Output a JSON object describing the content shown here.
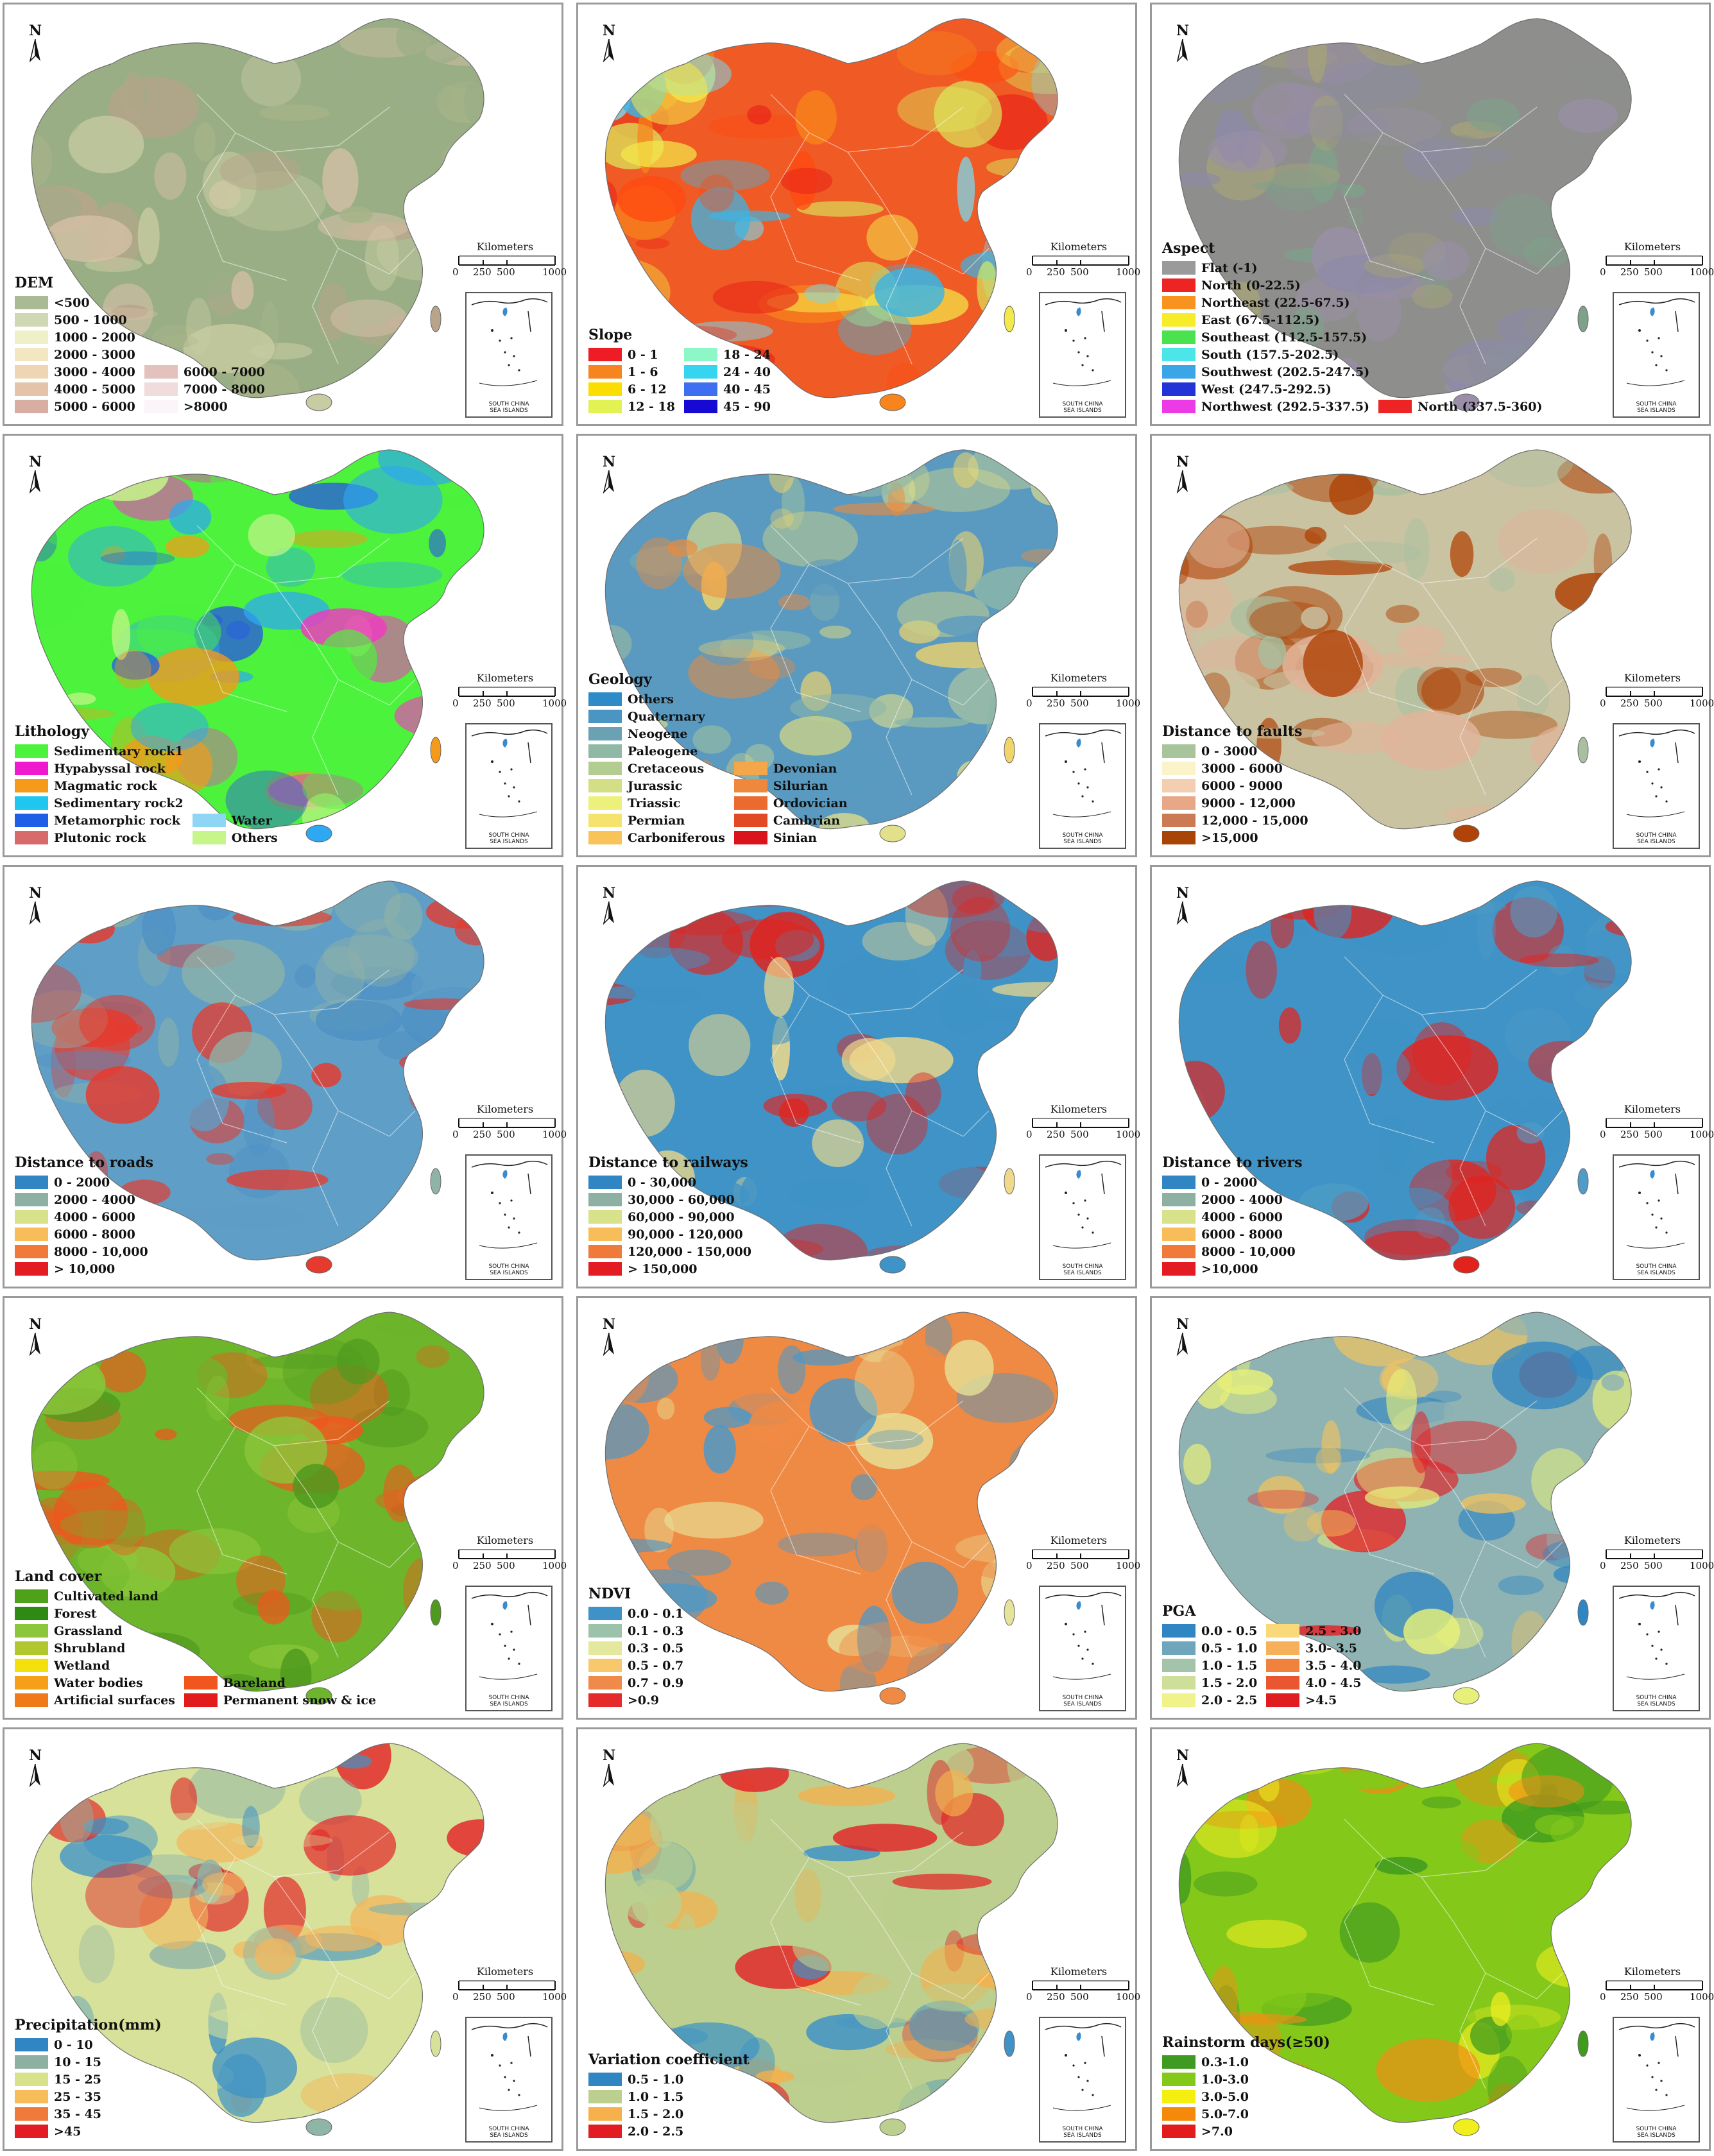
{
  "figure": {
    "north_label": "N",
    "scale": {
      "title": "Kilometers",
      "ticks": [
        "0",
        "250",
        "500",
        "1000"
      ]
    },
    "inset": {
      "line1": "SOUTH CHINA",
      "line2": "SEA ISLANDS"
    },
    "panels": [
      {
        "id": "dem",
        "title": "DEM",
        "base": "#9aae86",
        "palette": [
          "#9aae86",
          "#c8cca2",
          "#b7a48a",
          "#d8c1a8",
          "#a6b388"
        ],
        "legend_cols": [
          [
            {
              "label": "<500",
              "color": "#a8bb95"
            },
            {
              "label": "500 - 1000",
              "color": "#cfd8b4"
            },
            {
              "label": "1000 - 2000",
              "color": "#efefc8"
            },
            {
              "label": "2000 - 3000",
              "color": "#f3e7c1"
            },
            {
              "label": "3000 - 4000",
              "color": "#eed6b4"
            },
            {
              "label": "4000 - 5000",
              "color": "#e4c3a8"
            },
            {
              "label": "5000 - 6000",
              "color": "#d7aea1"
            }
          ],
          [
            {
              "label": "6000 - 7000",
              "color": "#e3c1bd"
            },
            {
              "label": "7000 - 8000",
              "color": "#f1dcdc"
            },
            {
              "label": ">8000",
              "color": "#fbf4f8"
            }
          ]
        ]
      },
      {
        "id": "slope",
        "title": "Slope",
        "base": "#f05a25",
        "palette": [
          "#e92a1a",
          "#f7841c",
          "#f3e94a",
          "#7dd6ea",
          "#3ab5e5",
          "#d8ee5e",
          "#ff4a10"
        ],
        "legend_cols": [
          [
            {
              "label": "0 - 1",
              "color": "#ee1c25"
            },
            {
              "label": "1 - 6",
              "color": "#f7851f"
            },
            {
              "label": "6 - 12",
              "color": "#fcdd00"
            },
            {
              "label": "12 - 18",
              "color": "#e3f253"
            }
          ],
          [
            {
              "label": "18 - 24",
              "color": "#8ef7c7"
            },
            {
              "label": "24 - 40",
              "color": "#35d5f2"
            },
            {
              "label": "40 - 45",
              "color": "#3d6ff0"
            },
            {
              "label": "45 - 90",
              "color": "#1509d3"
            }
          ]
        ]
      },
      {
        "id": "aspect",
        "title": "Aspect",
        "base": "#8e8f8c",
        "palette": [
          "#8e8f8c",
          "#9a8ea8",
          "#7fa08a",
          "#a3a17b",
          "#8c8aa8"
        ],
        "legend_cols": [
          [
            {
              "label": "Flat (-1)",
              "color": "#9a9a9a"
            },
            {
              "label": "North (0-22.5)",
              "color": "#ee2424"
            },
            {
              "label": "Northeast (22.5-67.5)",
              "color": "#f7931e"
            },
            {
              "label": "East (67.5-112.5)",
              "color": "#f6ec2a"
            },
            {
              "label": "Southeast (112.5-157.5)",
              "color": "#4ae24d"
            },
            {
              "label": "South (157.5-202.5)",
              "color": "#4de6e8"
            },
            {
              "label": "Southwest (202.5-247.5)",
              "color": "#3aa6e8"
            },
            {
              "label": "West (247.5-292.5)",
              "color": "#2234d6"
            },
            {
              "label": "Northwest (292.5-337.5)",
              "color": "#ec3ae6"
            }
          ],
          [
            {
              "label": "North (337.5-360)",
              "color": "#ee2424"
            }
          ]
        ]
      },
      {
        "id": "lithology",
        "title": "Lithology",
        "base": "#4cf23c",
        "palette": [
          "#4cf23c",
          "#2ea8f0",
          "#f59a1a",
          "#c6f58a",
          "#2b63d6",
          "#f03cc0"
        ],
        "legend_cols": [
          [
            {
              "label": "Sedimentary rock1",
              "color": "#4cf23c"
            },
            {
              "label": "Hypabyssal rock",
              "color": "#ef1ad0"
            },
            {
              "label": "Magmatic rock",
              "color": "#f59a1a"
            },
            {
              "label": "Sedimentary rock2",
              "color": "#1fc6f0"
            },
            {
              "label": "Metamorphic rock",
              "color": "#1f5fe8"
            },
            {
              "label": "Plutonic rock",
              "color": "#d86a6a"
            }
          ],
          [
            {
              "label": "Water",
              "color": "#8fd6f5"
            },
            {
              "label": "Others",
              "color": "#c6f58a"
            }
          ]
        ]
      },
      {
        "id": "geology",
        "title": "Geology",
        "base": "#5a9ac0",
        "palette": [
          "#5a9ac0",
          "#e2e08a",
          "#f1d46a",
          "#8cb6a8",
          "#ee8a3a",
          "#c8d08a"
        ],
        "legend_cols": [
          [
            {
              "label": "Others",
              "color": "#2f8ac8"
            },
            {
              "label": "Quaternary",
              "color": "#4b95c2"
            },
            {
              "label": "Neogene",
              "color": "#6aa2b4"
            },
            {
              "label": "Paleogene",
              "color": "#8fb9a6"
            },
            {
              "label": "Cretaceous",
              "color": "#b2cc92"
            },
            {
              "label": "Jurassic",
              "color": "#d4de84"
            },
            {
              "label": "Triassic",
              "color": "#eef07c"
            },
            {
              "label": "Permian",
              "color": "#f6e36e"
            },
            {
              "label": "Carboniferous",
              "color": "#f8c45a"
            }
          ],
          [
            {
              "label": "Devonian",
              "color": "#f4a64a"
            },
            {
              "label": "Silurian",
              "color": "#ef883c"
            },
            {
              "label": "Ordovician",
              "color": "#ea6a30"
            },
            {
              "label": "Cambrian",
              "color": "#e24a26"
            },
            {
              "label": "Sinian",
              "color": "#d9141c"
            }
          ]
        ]
      },
      {
        "id": "faults",
        "title": "Distance to faults",
        "base": "#c9c3a2",
        "palette": [
          "#c9c3a2",
          "#b04408",
          "#a8bfa0",
          "#e2b49a",
          "#b04408"
        ],
        "legend_cols": [
          [
            {
              "label": "0 - 3000",
              "color": "#a7c49a"
            },
            {
              "label": "3000 - 6000",
              "color": "#fbf3c9"
            },
            {
              "label": "6000 - 9000",
              "color": "#f4ceb0"
            },
            {
              "label": "9000 - 12,000",
              "color": "#e8a888"
            },
            {
              "label": "12,000 - 15,000",
              "color": "#cc7a54"
            },
            {
              "label": ">15,000",
              "color": "#a84406"
            }
          ]
        ]
      },
      {
        "id": "roads",
        "title": "Distance to roads",
        "base": "#5f9ec6",
        "palette": [
          "#5f9ec6",
          "#e63a2e",
          "#8fb3a8",
          "#4d90c4",
          "#e63a2e"
        ],
        "legend_cols": [
          [
            {
              "label": "0 - 2000",
              "color": "#2f86c2"
            },
            {
              "label": "2000 - 4000",
              "color": "#8db0a2"
            },
            {
              "label": "4000 - 6000",
              "color": "#d8e28a"
            },
            {
              "label": "6000 - 8000",
              "color": "#f6bd5a"
            },
            {
              "label": "8000 - 10,000",
              "color": "#ef7a3a"
            },
            {
              "label": "> 10,000",
              "color": "#e21c22"
            }
          ]
        ]
      },
      {
        "id": "railways",
        "title": "Distance to railways",
        "base": "#3f93c6",
        "palette": [
          "#e2231d",
          "#3f93c6",
          "#f0d98a",
          "#e2231d",
          "#3f93c6"
        ],
        "legend_cols": [
          [
            {
              "label": "0 - 30,000",
              "color": "#2f86c2"
            },
            {
              "label": "30,000 - 60,000",
              "color": "#8db0a2"
            },
            {
              "label": "60,000 - 90,000",
              "color": "#d8e28a"
            },
            {
              "label": "90,000 - 120,000",
              "color": "#f6bd5a"
            },
            {
              "label": "120,000 - 150,000",
              "color": "#ef7a3a"
            },
            {
              "label": "> 150,000",
              "color": "#e21c22"
            }
          ]
        ]
      },
      {
        "id": "rivers",
        "title": "Distance to rivers",
        "base": "#3f93c6",
        "palette": [
          "#3f93c6",
          "#e2231d",
          "#4f9cc6",
          "#e2231d",
          "#3f93c6"
        ],
        "legend_cols": [
          [
            {
              "label": "0 - 2000",
              "color": "#2f86c2"
            },
            {
              "label": "2000 - 4000",
              "color": "#8db0a2"
            },
            {
              "label": "4000 - 6000",
              "color": "#d8e28a"
            },
            {
              "label": "6000 - 8000",
              "color": "#f6bd5a"
            },
            {
              "label": "8000 - 10,000",
              "color": "#ef7a3a"
            },
            {
              "label": ">10,000",
              "color": "#e21c22"
            }
          ]
        ]
      },
      {
        "id": "landcover",
        "title": "Land cover",
        "base": "#6db52a",
        "palette": [
          "#f0561e",
          "#6db52a",
          "#4f9a1e",
          "#f0561e",
          "#8cc63a"
        ],
        "legend_cols": [
          [
            {
              "label": "Cultivated land",
              "color": "#4da21a"
            },
            {
              "label": "Forest",
              "color": "#2f8a14"
            },
            {
              "label": "Grassland",
              "color": "#8cc63a"
            },
            {
              "label": "Shrubland",
              "color": "#b0c82e"
            },
            {
              "label": "Wetland",
              "color": "#f4e00c"
            },
            {
              "label": "Water bodies",
              "color": "#f6a01a"
            },
            {
              "label": "Artificial surfaces",
              "color": "#f07a1a"
            }
          ],
          [
            {
              "label": "Bareland",
              "color": "#f0561e"
            },
            {
              "label": "Permanent snow & ice",
              "color": "#e21c1c"
            }
          ]
        ]
      },
      {
        "id": "ndvi",
        "title": "NDVI",
        "base": "#ef8a44",
        "palette": [
          "#4c98c8",
          "#ef8a44",
          "#e6e39a",
          "#4c98c8",
          "#ef8a44"
        ],
        "legend_cols": [
          [
            {
              "label": "0.0 - 0.1",
              "color": "#3e92c8"
            },
            {
              "label": "0.1 - 0.3",
              "color": "#9dc2ac"
            },
            {
              "label": "0.3 - 0.5",
              "color": "#e3e89c"
            },
            {
              "label": "0.5 - 0.7",
              "color": "#f7c86c"
            },
            {
              "label": "0.7 - 0.9",
              "color": "#f08a4a"
            },
            {
              "label": ">0.9",
              "color": "#e42a2a"
            }
          ]
        ]
      },
      {
        "id": "pga",
        "title": "PGA",
        "base": "#8fb3b3",
        "palette": [
          "#8fb3b3",
          "#e7f07a",
          "#2f86c2",
          "#e32226",
          "#f6c45a"
        ],
        "legend_cols": [
          [
            {
              "label": "0.0 - 0.5",
              "color": "#2f86c2"
            },
            {
              "label": "0.5 - 1.0",
              "color": "#70a6bc"
            },
            {
              "label": "1.0 - 1.5",
              "color": "#a3c3aa"
            },
            {
              "label": "1.5 - 2.0",
              "color": "#cedf9a"
            },
            {
              "label": "2.0 - 2.5",
              "color": "#f0f28a"
            }
          ],
          [
            {
              "label": "2.5 - 3.0",
              "color": "#f9d97a"
            },
            {
              "label": "3.0- 3.5",
              "color": "#f6b05a"
            },
            {
              "label": "3.5 - 4.0",
              "color": "#f0823e"
            },
            {
              "label": "4.0 - 4.5",
              "color": "#ea5532"
            },
            {
              "label": ">4.5",
              "color": "#e01c22"
            }
          ]
        ]
      },
      {
        "id": "precipitation",
        "title": "Precipitation(mm)",
        "base": "#d7e19a",
        "palette": [
          "#3f93c6",
          "#8fb5a6",
          "#d7e19a",
          "#f3b75c",
          "#e32226"
        ],
        "legend_cols": [
          [
            {
              "label": "0 - 10",
              "color": "#2f86c2"
            },
            {
              "label": "10 - 15",
              "color": "#8db0a2"
            },
            {
              "label": "15 - 25",
              "color": "#d8e28a"
            },
            {
              "label": "25 - 35",
              "color": "#f6bd5a"
            },
            {
              "label": "35 - 45",
              "color": "#ef7a3a"
            },
            {
              "label": ">45",
              "color": "#e21c22"
            }
          ]
        ]
      },
      {
        "id": "variation",
        "title": "Variation coefficient",
        "base": "#bccf8e",
        "palette": [
          "#f4b04c",
          "#bccf8e",
          "#3f93c6",
          "#e32226",
          "#bccf8e"
        ],
        "legend_cols": [
          [
            {
              "label": "0.5 - 1.0",
              "color": "#2f86c2"
            },
            {
              "label": "1.0 - 1.5",
              "color": "#bccf8e"
            },
            {
              "label": "1.5 - 2.0",
              "color": "#f6b04c"
            },
            {
              "label": "2.0 - 2.5",
              "color": "#e21c22"
            }
          ]
        ]
      },
      {
        "id": "rainstorm",
        "title": "Rainstorm days(≥50)",
        "base": "#84c91a",
        "palette": [
          "#84c91a",
          "#f1ee20",
          "#3f9a1e",
          "#f58a14",
          "#84c91a"
        ],
        "legend_cols": [
          [
            {
              "label": "0.3-1.0",
              "color": "#3e9a20"
            },
            {
              "label": "1.0-3.0",
              "color": "#84c91a"
            },
            {
              "label": "3.0-5.0",
              "color": "#f5ef10"
            },
            {
              "label": "5.0-7.0",
              "color": "#f58a0a"
            },
            {
              "label": ">7.0",
              "color": "#e21c1c"
            }
          ]
        ]
      }
    ]
  }
}
